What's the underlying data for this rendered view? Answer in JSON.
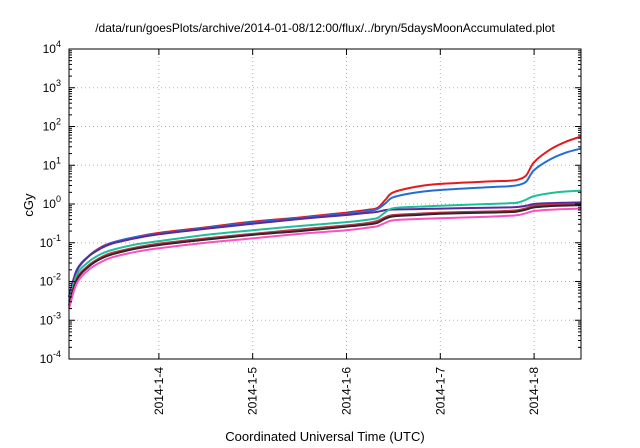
{
  "chart_data": {
    "type": "line",
    "title": "/data/run/goesPlots/archive/2014-01-08/12:00/flux/../bryn/5daysMoonAccumulated.plot",
    "xlabel": "Coordinated Universal Time (UTC)",
    "ylabel": "cGy",
    "x_scale": "date",
    "y_scale": "log",
    "xlim": [
      "2014-01-03T01:00",
      "2014-01-08T12:00"
    ],
    "ylim": [
      0.0001,
      10000
    ],
    "grid": true,
    "legend": "none",
    "x_ticks": [
      {
        "label": "2014-1-4",
        "value": "2014-01-04T00:00"
      },
      {
        "label": "2014-1-5",
        "value": "2014-01-05T00:00"
      },
      {
        "label": "2014-1-6",
        "value": "2014-01-06T00:00"
      },
      {
        "label": "2014-1-7",
        "value": "2014-01-07T00:00"
      },
      {
        "label": "2014-1-8",
        "value": "2014-01-08T00:00"
      }
    ],
    "y_ticks": [
      {
        "base": "10",
        "exp": "-4",
        "value": 0.0001
      },
      {
        "base": "10",
        "exp": "-3",
        "value": 0.001
      },
      {
        "base": "10",
        "exp": "-2",
        "value": 0.01
      },
      {
        "base": "10",
        "exp": "-1",
        "value": 0.1
      },
      {
        "base": "10",
        "exp": "0",
        "value": 1
      },
      {
        "base": "10",
        "exp": "1",
        "value": 10
      },
      {
        "base": "10",
        "exp": "2",
        "value": 100
      },
      {
        "base": "10",
        "exp": "3",
        "value": 1000
      },
      {
        "base": "10",
        "exp": "4",
        "value": 10000
      }
    ],
    "x": [
      "2014-01-03T01:00",
      "2014-01-03T03:00",
      "2014-01-03T06:00",
      "2014-01-03T09:00",
      "2014-01-03T12:00",
      "2014-01-03T18:00",
      "2014-01-04T00:00",
      "2014-01-04T12:00",
      "2014-01-05T00:00",
      "2014-01-05T12:00",
      "2014-01-06T00:00",
      "2014-01-06T06:00",
      "2014-01-06T08:00",
      "2014-01-06T10:00",
      "2014-01-06T12:00",
      "2014-01-06T18:00",
      "2014-01-07T00:00",
      "2014-01-07T12:00",
      "2014-01-07T18:00",
      "2014-01-07T20:00",
      "2014-01-07T22:00",
      "2014-01-08T00:00",
      "2014-01-08T04:00",
      "2014-01-08T08:00",
      "2014-01-08T12:00"
    ],
    "series": [
      {
        "color": "#e41a1c",
        "values": [
          0.004,
          0.02,
          0.045,
          0.075,
          0.1,
          0.14,
          0.18,
          0.25,
          0.35,
          0.45,
          0.6,
          0.72,
          0.8,
          1.3,
          2.0,
          2.8,
          3.3,
          3.8,
          4.0,
          4.3,
          5.5,
          12,
          25,
          40,
          55
        ]
      },
      {
        "color": "#1f6fd6",
        "values": [
          0.004,
          0.02,
          0.045,
          0.072,
          0.1,
          0.14,
          0.17,
          0.24,
          0.33,
          0.43,
          0.56,
          0.67,
          0.75,
          1.05,
          1.5,
          2.0,
          2.3,
          2.7,
          2.9,
          3.1,
          3.8,
          7.5,
          14,
          21,
          27
        ]
      },
      {
        "color": "#5c2a9d",
        "values": [
          0.004,
          0.019,
          0.044,
          0.07,
          0.095,
          0.13,
          0.165,
          0.23,
          0.31,
          0.41,
          0.52,
          0.6,
          0.63,
          0.7,
          0.72,
          0.74,
          0.76,
          0.8,
          0.82,
          0.84,
          0.9,
          1.0,
          1.05,
          1.08,
          1.1
        ]
      },
      {
        "color": "#1cbf9a",
        "values": [
          0.003,
          0.015,
          0.032,
          0.05,
          0.065,
          0.09,
          0.11,
          0.16,
          0.21,
          0.27,
          0.34,
          0.4,
          0.44,
          0.62,
          0.78,
          0.85,
          0.9,
          1.0,
          1.05,
          1.1,
          1.3,
          1.6,
          1.9,
          2.1,
          2.2
        ]
      },
      {
        "color": "#c8324a",
        "values": [
          0.0025,
          0.012,
          0.026,
          0.041,
          0.055,
          0.075,
          0.095,
          0.13,
          0.17,
          0.22,
          0.28,
          0.33,
          0.37,
          0.46,
          0.52,
          0.56,
          0.6,
          0.64,
          0.67,
          0.7,
          0.78,
          0.9,
          0.95,
          0.98,
          1.0
        ]
      },
      {
        "color": "#2a2a2a",
        "values": [
          0.0024,
          0.011,
          0.024,
          0.038,
          0.05,
          0.07,
          0.087,
          0.12,
          0.16,
          0.2,
          0.26,
          0.3,
          0.33,
          0.42,
          0.48,
          0.52,
          0.56,
          0.6,
          0.62,
          0.65,
          0.72,
          0.82,
          0.88,
          0.91,
          0.93
        ]
      },
      {
        "color": "#ff4fc0",
        "values": [
          0.002,
          0.009,
          0.02,
          0.031,
          0.042,
          0.058,
          0.072,
          0.1,
          0.13,
          0.17,
          0.21,
          0.25,
          0.27,
          0.33,
          0.38,
          0.41,
          0.43,
          0.47,
          0.5,
          0.52,
          0.58,
          0.66,
          0.71,
          0.74,
          0.76
        ]
      }
    ]
  }
}
